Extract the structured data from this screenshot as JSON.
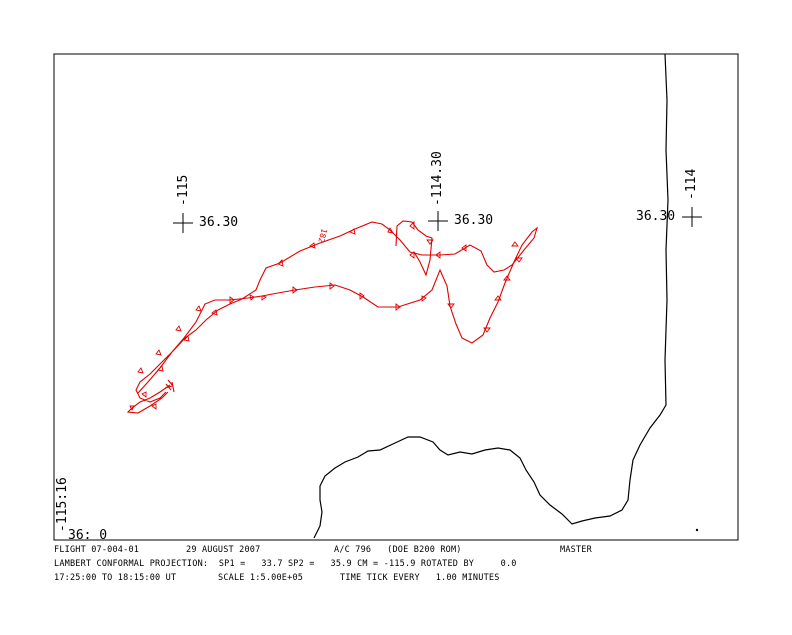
{
  "map": {
    "corner_lon_label": "-115:16",
    "corner_lat_label": "36: 0",
    "markers": [
      {
        "lon_label": "-115",
        "lat_label": "36.30"
      },
      {
        "lon_label": "-114.30",
        "lat_label": "36.30"
      },
      {
        "lon_label": "-114",
        "lat_label": "36.30"
      }
    ],
    "track_annotation": "182",
    "track_color": "#e00000",
    "boundary_color": "#000000"
  },
  "footer": {
    "flight": "FLIGHT 07-004-01",
    "date": "29 AUGUST 2007",
    "aircraft": "A/C 796   (DOE B200 ROM)",
    "mode": "MASTER",
    "projection": "LAMBERT CONFORMAL PROJECTION:  SP1 =   33.7 SP2 =   35.9 CM = -115.9 ROTATED BY     0.0",
    "time_range": "17:25:00 TO 18:15:00 UT",
    "scale": "SCALE 1:5.00E+05",
    "time_tick": "TIME TICK EVERY   1.00 MINUTES"
  }
}
